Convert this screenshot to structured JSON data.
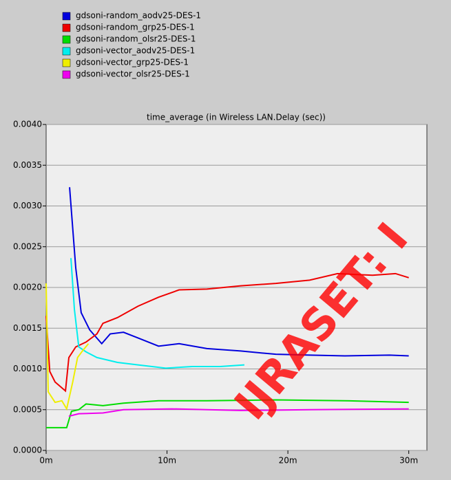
{
  "chart_data": {
    "type": "line",
    "title": "time_average (in Wireless LAN.Delay (sec))",
    "watermark": "IJRASET: I",
    "xlim": [
      0,
      31.5
    ],
    "ylim": [
      0,
      0.004
    ],
    "xticks": [
      {
        "value": 0,
        "label": "0m"
      },
      {
        "value": 10,
        "label": "10m"
      },
      {
        "value": 20,
        "label": "20m"
      },
      {
        "value": 30,
        "label": "30m"
      }
    ],
    "yticks": [
      {
        "value": 0,
        "label": "0.0000"
      },
      {
        "value": 0.0005,
        "label": "0.0005"
      },
      {
        "value": 0.001,
        "label": "0.0010"
      },
      {
        "value": 0.0015,
        "label": "0.0015"
      },
      {
        "value": 0.002,
        "label": "0.0020"
      },
      {
        "value": 0.0025,
        "label": "0.0025"
      },
      {
        "value": 0.003,
        "label": "0.0030"
      },
      {
        "value": 0.0035,
        "label": "0.0035"
      },
      {
        "value": 0.004,
        "label": "0.0040"
      }
    ],
    "grid": true,
    "legend": "top-left",
    "series": [
      {
        "name": "gdsoni-random_aodv25-DES-1",
        "color": "#0000dd",
        "x": [
          1.94,
          2.45,
          2.9,
          3.6,
          4.6,
          5.3,
          6.4,
          7.6,
          9.3,
          11,
          13.3,
          16.1,
          19,
          21.8,
          24.7,
          28.4,
          30
        ],
        "values": [
          0.00323,
          0.00224,
          0.00169,
          0.00148,
          0.00131,
          0.00143,
          0.00145,
          0.00138,
          0.00128,
          0.00131,
          0.00125,
          0.00122,
          0.00118,
          0.00117,
          0.00116,
          0.00117,
          0.00116
        ]
      },
      {
        "name": "gdsoni-random_grp25-DES-1",
        "color": "#ee0000",
        "x": [
          0,
          0.3,
          0.74,
          1.6,
          1.88,
          2.45,
          3.3,
          4.2,
          4.7,
          5.9,
          7.6,
          9.3,
          11,
          13.3,
          16.1,
          19,
          21.8,
          24.1,
          27,
          28.9,
          30
        ],
        "values": [
          0.00165,
          0.00097,
          0.00084,
          0.00073,
          0.00114,
          0.00127,
          0.00133,
          0.00143,
          0.00156,
          0.00163,
          0.00177,
          0.00188,
          0.00197,
          0.00198,
          0.00202,
          0.00205,
          0.00209,
          0.00217,
          0.00215,
          0.00217,
          0.00212
        ]
      },
      {
        "name": "gdsoni-random_olsr25-DES-1",
        "color": "#00dd00",
        "x": [
          0,
          1.7,
          2.1,
          2.7,
          3.3,
          4.7,
          6.4,
          9.3,
          13.3,
          19,
          24.7,
          30
        ],
        "values": [
          0.00028,
          0.00028,
          0.00048,
          0.0005,
          0.00057,
          0.00055,
          0.00058,
          0.00061,
          0.00061,
          0.00062,
          0.00061,
          0.00059
        ]
      },
      {
        "name": "gdsoni-vector_aodv25-DES-1",
        "color": "#00eeee",
        "x": [
          2.05,
          2.34,
          2.7,
          3.3,
          4.2,
          5.9,
          7.6,
          9.9,
          12.1,
          14.4,
          16.4
        ],
        "values": [
          0.00236,
          0.00173,
          0.00127,
          0.00121,
          0.00114,
          0.00108,
          0.00105,
          0.00101,
          0.00103,
          0.00103,
          0.00105
        ]
      },
      {
        "name": "gdsoni-vector_grp25-DES-1",
        "color": "#eeee00",
        "x": [
          0,
          0.17,
          0.74,
          1.3,
          1.7,
          2.2,
          2.6,
          3,
          3.5
        ],
        "values": [
          0.00205,
          0.00072,
          0.00059,
          0.00061,
          0.00051,
          0.00084,
          0.00114,
          0.00122,
          0.00131
        ]
      },
      {
        "name": "gdsoni-vector_olsr25-DES-1",
        "color": "#ee00ee",
        "x": [
          1.88,
          2.7,
          4.7,
          6.4,
          10.4,
          16.1,
          21.8,
          30
        ],
        "values": [
          0.00042,
          0.00045,
          0.00046,
          0.0005,
          0.00051,
          0.00049,
          0.0005,
          0.00051
        ]
      }
    ]
  }
}
